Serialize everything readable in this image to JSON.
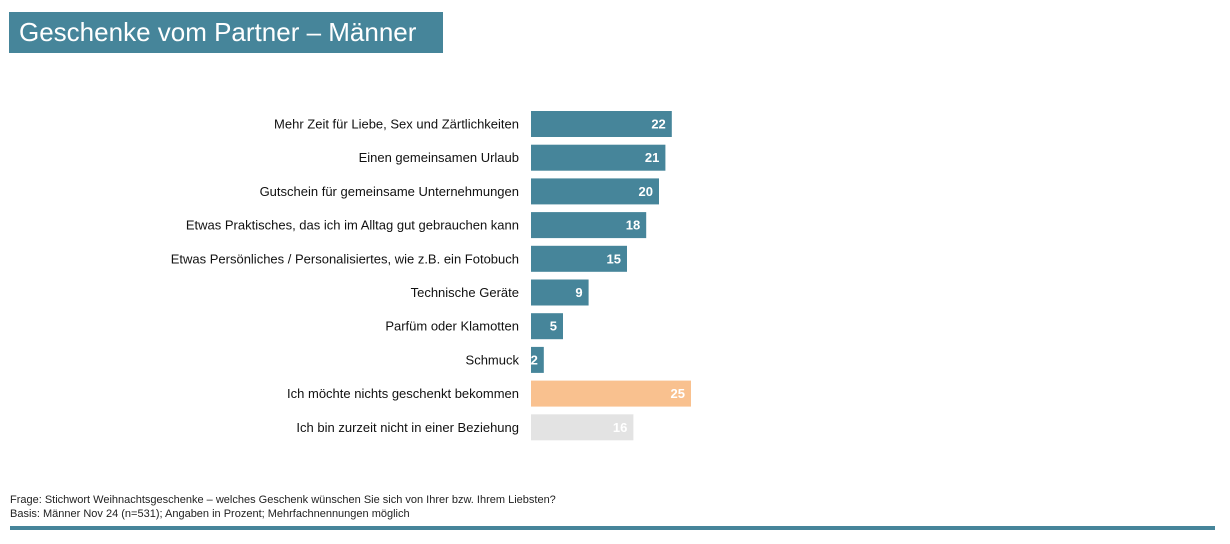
{
  "title": "Geschenke vom Partner – Männer",
  "chart_data": {
    "type": "bar",
    "orientation": "horizontal",
    "title": "Geschenke vom Partner – Männer",
    "unit": "Prozent",
    "categories": [
      "Mehr Zeit für Liebe, Sex und Zärtlichkeiten",
      "Einen gemeinsamen Urlaub",
      "Gutschein für gemeinsame Unternehmungen",
      "Etwas Praktisches, das ich im Alltag gut gebrauchen kann",
      "Etwas Persönliches / Personalisiertes, wie z.B. ein Fotobuch",
      "Technische Geräte",
      "Parfüm oder Klamotten",
      "Schmuck",
      "Ich möchte nichts geschenkt bekommen",
      "Ich bin zurzeit nicht in einer Beziehung"
    ],
    "values": [
      22,
      21,
      20,
      18,
      15,
      9,
      5,
      2,
      25,
      16
    ],
    "bar_colors": [
      "#46859a",
      "#46859a",
      "#46859a",
      "#46859a",
      "#46859a",
      "#46859a",
      "#46859a",
      "#46859a",
      "#f9c18f",
      "#e3e3e3"
    ],
    "label_color": "#ffffff",
    "xlim": [
      0,
      25
    ],
    "grid": false,
    "legend": "none"
  },
  "footnotes": {
    "question": "Frage: Stichwort Weihnachtsgeschenke – welches Geschenk wünschen Sie sich von Ihrer bzw. Ihrem Liebsten?",
    "basis": "Basis: Männer Nov 24 (n=531); Angaben in Prozent; Mehrfachnennungen möglich"
  },
  "colors": {
    "accent": "#46859a",
    "highlight": "#f9c18f",
    "neutral": "#e3e3e3"
  }
}
